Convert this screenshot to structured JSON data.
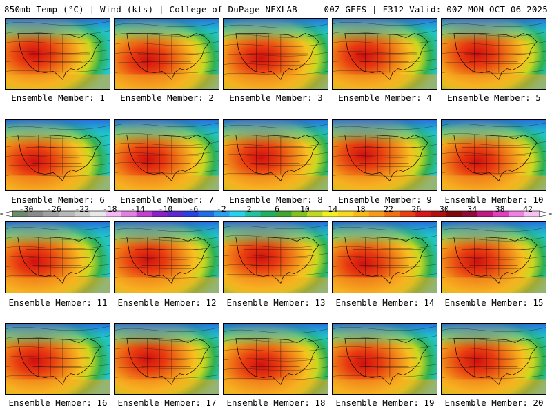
{
  "header": {
    "left_title": "850mb Temp (°C) | Wind (kts) | College of DuPage NEXLAB",
    "right_title": "00Z GEFS | F312 Valid: 00Z MON OCT 06 2025"
  },
  "panels": [
    {
      "label": "Ensemble Member: 1"
    },
    {
      "label": "Ensemble Member: 2"
    },
    {
      "label": "Ensemble Member: 3"
    },
    {
      "label": "Ensemble Member: 4"
    },
    {
      "label": "Ensemble Member: 5"
    },
    {
      "label": "Ensemble Member: 6"
    },
    {
      "label": "Ensemble Member: 7"
    },
    {
      "label": "Ensemble Member: 8"
    },
    {
      "label": "Ensemble Member: 9"
    },
    {
      "label": "Ensemble Member: 10"
    },
    {
      "label": "Ensemble Member: 11"
    },
    {
      "label": "Ensemble Member: 12"
    },
    {
      "label": "Ensemble Member: 13"
    },
    {
      "label": "Ensemble Member: 14"
    },
    {
      "label": "Ensemble Member: 15"
    },
    {
      "label": "Ensemble Member: 16"
    },
    {
      "label": "Ensemble Member: 17"
    },
    {
      "label": "Ensemble Member: 18"
    },
    {
      "label": "Ensemble Member: 19"
    },
    {
      "label": "Ensemble Member: 20"
    }
  ],
  "colorbar": {
    "ticks_lower": [
      "-30",
      "-22",
      "-14",
      "-6",
      "2",
      "10",
      "18",
      "26",
      "34",
      "42"
    ],
    "ticks_upper": [
      "-26",
      "-18",
      "-10",
      "-2",
      "6",
      "14",
      "22",
      "30",
      "38"
    ],
    "colors": [
      "#6b8c6b",
      "#8a8a8a",
      "#a0a0a0",
      "#b8b8b8",
      "#cfcfcf",
      "#e8e8e8",
      "#f2b8f2",
      "#e080e0",
      "#c040d0",
      "#8a20c8",
      "#5a2ad0",
      "#2a40e0",
      "#1e6ee8",
      "#28a0f0",
      "#28d0f0",
      "#20c0a0",
      "#20b060",
      "#40a830",
      "#80c020",
      "#c0d820",
      "#f0f020",
      "#f8d820",
      "#f8b818",
      "#f89818",
      "#f07010",
      "#e84010",
      "#d81818",
      "#b01010",
      "#800808",
      "#900838",
      "#c01880",
      "#e040c0",
      "#f080e0",
      "#f8c0f0"
    ]
  }
}
